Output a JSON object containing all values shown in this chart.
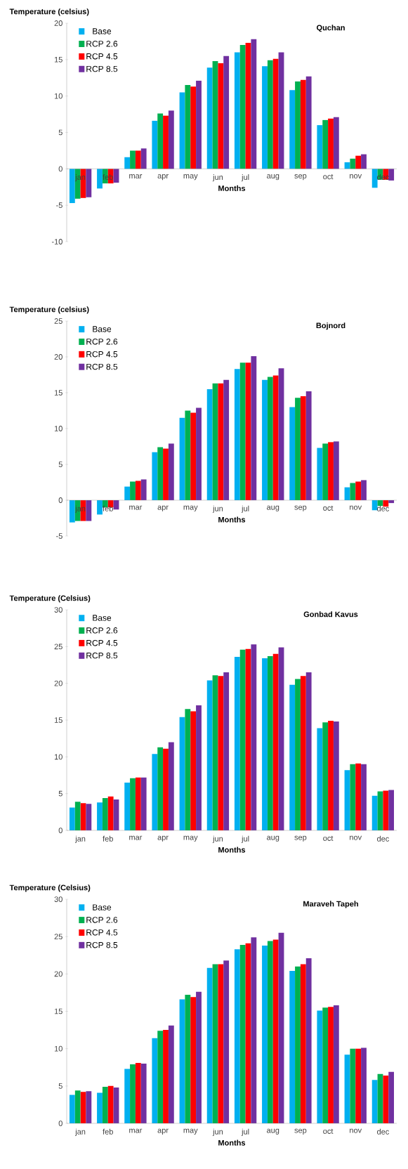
{
  "chart_data": [
    {
      "type": "bar",
      "title": "Quchan",
      "xlabel": "Months",
      "ylabel": "Temperature (celsius)",
      "legend": "top left",
      "ylim": [
        -10,
        20
      ],
      "yticks": [
        -10,
        -5,
        0,
        5,
        10,
        15,
        20
      ],
      "categories": [
        "jan",
        "feb",
        "mar",
        "apr",
        "may",
        "jun",
        "jul",
        "aug",
        "sep",
        "oct",
        "nov",
        "dec"
      ],
      "series": [
        {
          "name": "Base",
          "color": "#00b0f0",
          "values": [
            -4.7,
            -2.7,
            1.6,
            6.6,
            10.5,
            13.9,
            16.0,
            14.1,
            10.8,
            6.0,
            0.9,
            -2.6
          ]
        },
        {
          "name": "RCP 2.6",
          "color": "#00b050",
          "values": [
            -4.1,
            -2.0,
            2.5,
            7.6,
            11.5,
            14.8,
            17.0,
            14.9,
            12.0,
            6.7,
            1.4,
            -1.5
          ]
        },
        {
          "name": "RCP 4.5",
          "color": "#ff0000",
          "values": [
            -4.0,
            -2.0,
            2.5,
            7.3,
            11.3,
            14.5,
            17.3,
            15.1,
            12.2,
            6.9,
            1.8,
            -1.5
          ]
        },
        {
          "name": "RCP 8.5",
          "color": "#7030a0",
          "values": [
            -3.9,
            -1.9,
            2.8,
            8.0,
            12.1,
            15.5,
            17.8,
            16.0,
            12.7,
            7.1,
            2.0,
            -1.6
          ]
        }
      ]
    },
    {
      "type": "bar",
      "title": "Bojnord",
      "xlabel": "Months",
      "ylabel": "Temperature (celsius)",
      "legend": "top left",
      "ylim": [
        -5,
        25
      ],
      "yticks": [
        -5,
        0,
        5,
        10,
        15,
        20,
        25
      ],
      "categories": [
        "jan",
        "feb",
        "mar",
        "apr",
        "may",
        "jun",
        "jul",
        "aug",
        "sep",
        "oct",
        "nov",
        "dec"
      ],
      "series": [
        {
          "name": "Base",
          "color": "#00b0f0",
          "values": [
            -3.1,
            -2.0,
            1.9,
            6.7,
            11.5,
            15.5,
            18.3,
            16.8,
            13.0,
            7.3,
            1.8,
            -1.4
          ]
        },
        {
          "name": "RCP 2.6",
          "color": "#00b050",
          "values": [
            -2.9,
            -1.0,
            2.6,
            7.4,
            12.5,
            16.3,
            19.2,
            17.2,
            14.3,
            7.9,
            2.4,
            -0.8
          ]
        },
        {
          "name": "RCP 4.5",
          "color": "#ff0000",
          "values": [
            -2.9,
            -1.0,
            2.7,
            7.2,
            12.2,
            16.3,
            19.2,
            17.4,
            14.5,
            8.1,
            2.6,
            -0.9
          ]
        },
        {
          "name": "RCP 8.5",
          "color": "#7030a0",
          "values": [
            -2.9,
            -1.3,
            2.9,
            7.9,
            12.9,
            16.8,
            20.1,
            18.4,
            15.2,
            8.2,
            2.8,
            -0.4
          ]
        }
      ]
    },
    {
      "type": "bar",
      "title": "Gonbad Kavus",
      "xlabel": "Months",
      "ylabel": "Temperature (Celsius)",
      "legend": "top left",
      "ylim": [
        0,
        30
      ],
      "yticks": [
        0,
        5,
        10,
        15,
        20,
        25,
        30
      ],
      "categories": [
        "jan",
        "feb",
        "mar",
        "apr",
        "may",
        "jun",
        "jul",
        "aug",
        "sep",
        "oct",
        "nov",
        "dec"
      ],
      "series": [
        {
          "name": "Base",
          "color": "#00b0f0",
          "values": [
            3.1,
            3.8,
            6.5,
            10.4,
            15.4,
            20.4,
            23.6,
            23.4,
            19.8,
            13.9,
            8.2,
            4.7
          ]
        },
        {
          "name": "RCP 2.6",
          "color": "#00b050",
          "values": [
            3.9,
            4.4,
            7.1,
            11.3,
            16.5,
            21.1,
            24.6,
            23.7,
            20.6,
            14.7,
            9.0,
            5.3
          ]
        },
        {
          "name": "RCP 4.5",
          "color": "#ff0000",
          "values": [
            3.7,
            4.6,
            7.2,
            11.1,
            16.2,
            21.0,
            24.7,
            24.0,
            21.0,
            14.9,
            9.1,
            5.4
          ]
        },
        {
          "name": "RCP 8.5",
          "color": "#7030a0",
          "values": [
            3.6,
            4.2,
            7.2,
            12.0,
            17.0,
            21.5,
            25.3,
            24.9,
            21.5,
            14.8,
            9.0,
            5.5
          ]
        }
      ]
    },
    {
      "type": "bar",
      "title": "Maraveh Tapeh",
      "xlabel": "Months",
      "ylabel": "Temperature (Celsius)",
      "legend": "top left",
      "ylim": [
        0,
        30
      ],
      "yticks": [
        0,
        5,
        10,
        15,
        20,
        25,
        30
      ],
      "categories": [
        "jan",
        "feb",
        "mar",
        "apr",
        "may",
        "jun",
        "jul",
        "aug",
        "sep",
        "oct",
        "nov",
        "dec"
      ],
      "series": [
        {
          "name": "Base",
          "color": "#00b0f0",
          "values": [
            3.8,
            4.1,
            7.3,
            11.4,
            16.6,
            20.8,
            23.3,
            23.8,
            20.4,
            15.1,
            9.2,
            5.8
          ]
        },
        {
          "name": "RCP 2.6",
          "color": "#00b050",
          "values": [
            4.4,
            4.9,
            7.9,
            12.4,
            17.2,
            21.3,
            23.9,
            24.4,
            21.0,
            15.5,
            10.0,
            6.6
          ]
        },
        {
          "name": "RCP 4.5",
          "color": "#ff0000",
          "values": [
            4.2,
            5.0,
            8.1,
            12.5,
            16.9,
            21.3,
            24.1,
            24.6,
            21.3,
            15.6,
            10.0,
            6.4
          ]
        },
        {
          "name": "RCP 8.5",
          "color": "#7030a0",
          "values": [
            4.3,
            4.8,
            8.0,
            13.1,
            17.6,
            21.8,
            24.9,
            25.5,
            22.1,
            15.8,
            10.1,
            6.9
          ]
        }
      ]
    }
  ]
}
